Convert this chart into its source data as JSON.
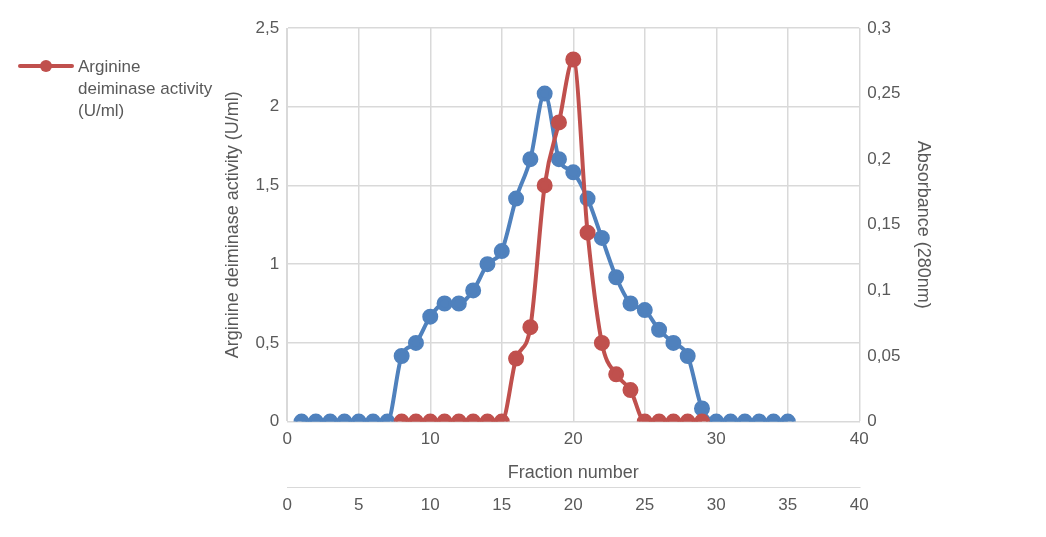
{
  "chart_data": {
    "type": "line",
    "xlabel": "Fraction number",
    "ylabel": "Arginine deiminase activity (U/ml)",
    "y2label": "Absorbance (280nm)",
    "xlim": [
      0,
      40
    ],
    "xticks": [
      0,
      5,
      10,
      15,
      20,
      25,
      30,
      35,
      40
    ],
    "x2lim": [
      0,
      40
    ],
    "x2ticks": [
      0,
      10,
      20,
      30,
      40
    ],
    "ylim": [
      0,
      2.5
    ],
    "yticks": [
      0,
      {
        "value": 0.5,
        "label": "0,5"
      },
      1,
      {
        "value": 1.5,
        "label": "1,5"
      },
      2,
      {
        "value": 2.5,
        "label": "2,5"
      }
    ],
    "y2lim": [
      0,
      0.3
    ],
    "y2ticks": [
      0,
      {
        "value": 0.05,
        "label": "0,05"
      },
      {
        "value": 0.1,
        "label": "0,1"
      },
      {
        "value": 0.15,
        "label": "0,15"
      },
      {
        "value": 0.2,
        "label": "0,2"
      },
      {
        "value": 0.25,
        "label": "0,25"
      },
      {
        "value": 0.3,
        "label": "0,3"
      }
    ],
    "grid": true,
    "legend": "top left",
    "marker": "circle",
    "line_style": "solid",
    "series": [
      {
        "name": "Arginine deiminase activity (U/ml)",
        "color": "#c0504d",
        "x": [
          8,
          9,
          10,
          11,
          12,
          13,
          14,
          15,
          16,
          17,
          18,
          19,
          20,
          21,
          22,
          23,
          24,
          25,
          26,
          27,
          28,
          29
        ],
        "values": [
          0,
          0,
          0,
          0,
          0,
          0,
          0,
          0,
          0.4,
          0.6,
          1.5,
          1.9,
          2.3,
          1.2,
          0.5,
          0.3,
          0.2,
          0,
          0,
          0,
          0,
          0
        ]
      },
      {
        "color": "#4f81bd",
        "axis": "y2",
        "x": [
          1,
          2,
          3,
          4,
          5,
          6,
          7,
          8,
          9,
          10,
          11,
          12,
          13,
          14,
          15,
          16,
          17,
          18,
          19,
          20,
          21,
          22,
          23,
          24,
          25,
          26,
          27,
          28,
          29,
          30,
          31,
          32,
          33,
          34,
          35
        ],
        "values": [
          0,
          0,
          0,
          0,
          0,
          0,
          0,
          0.05,
          0.06,
          0.08,
          0.09,
          0.09,
          0.1,
          0.12,
          0.13,
          0.17,
          0.2,
          0.25,
          0.2,
          0.19,
          0.17,
          0.14,
          0.11,
          0.09,
          0.085,
          0.07,
          0.06,
          0.05,
          0.01,
          0,
          0,
          0,
          0,
          0,
          0
        ]
      }
    ]
  }
}
